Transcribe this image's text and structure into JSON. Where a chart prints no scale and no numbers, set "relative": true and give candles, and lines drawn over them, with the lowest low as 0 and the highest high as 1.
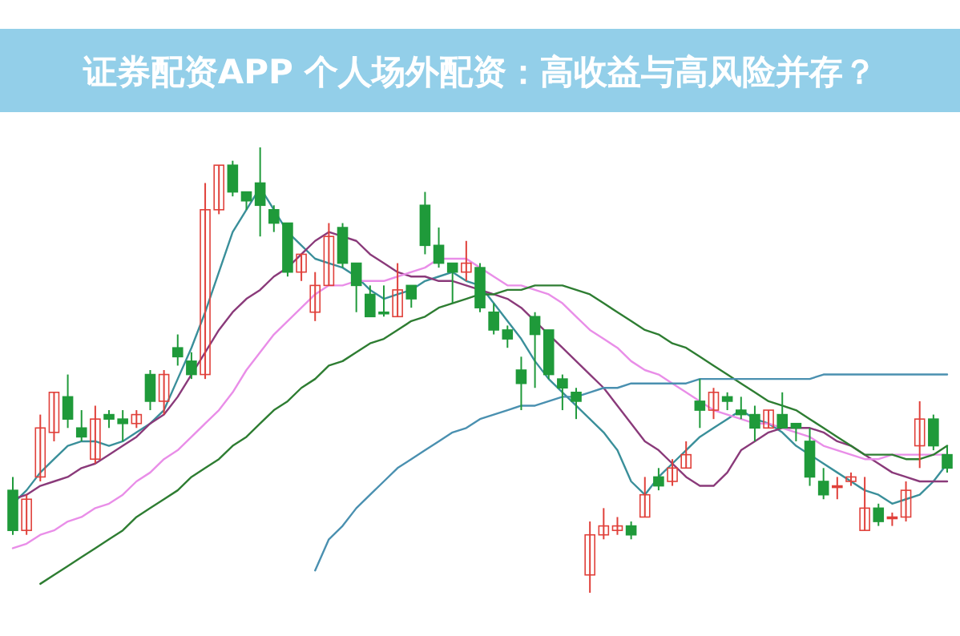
{
  "chart_data": {
    "type": "candlestick",
    "title": "证券配资APP 个人场外配资：高收益与高风险并存？",
    "relative": true,
    "categories": [
      null,
      null,
      null,
      null,
      null,
      null,
      null,
      null,
      null,
      null,
      null,
      null,
      null,
      null,
      null,
      null,
      null,
      null,
      null,
      null,
      null,
      null,
      null,
      null,
      null,
      null,
      null,
      null,
      null,
      null,
      null,
      null,
      null,
      null,
      null,
      null,
      null,
      null,
      null,
      null,
      null,
      null,
      null,
      null,
      null,
      null,
      null,
      null,
      null,
      null,
      null,
      null,
      null,
      null,
      null,
      null,
      null,
      null,
      null,
      null,
      null,
      null,
      null,
      null,
      null,
      null,
      null,
      null,
      null
    ],
    "ohlc": [
      [
        0.23,
        0.26,
        0.13,
        0.14
      ],
      [
        0.14,
        0.22,
        0.13,
        0.21
      ],
      [
        0.26,
        0.4,
        0.25,
        0.37
      ],
      [
        0.36,
        0.45,
        0.34,
        0.45
      ],
      [
        0.44,
        0.49,
        0.37,
        0.39
      ],
      [
        0.37,
        0.41,
        0.34,
        0.35
      ],
      [
        0.3,
        0.42,
        0.29,
        0.39
      ],
      [
        0.4,
        0.41,
        0.37,
        0.39
      ],
      [
        0.39,
        0.41,
        0.34,
        0.38
      ],
      [
        0.38,
        0.41,
        0.37,
        0.4
      ],
      [
        0.49,
        0.5,
        0.41,
        0.43
      ],
      [
        0.43,
        0.5,
        0.4,
        0.49
      ],
      [
        0.55,
        0.58,
        0.51,
        0.53
      ],
      [
        0.52,
        0.54,
        0.48,
        0.49
      ],
      [
        0.49,
        0.92,
        0.48,
        0.86
      ],
      [
        0.86,
        0.96,
        0.85,
        0.96
      ],
      [
        0.96,
        0.97,
        0.89,
        0.9
      ],
      [
        0.9,
        0.9,
        0.86,
        0.88
      ],
      [
        0.92,
        1,
        0.8,
        0.87
      ],
      [
        0.86,
        0.87,
        0.81,
        0.83
      ],
      [
        0.83,
        0.83,
        0.71,
        0.72
      ],
      [
        0.72,
        0.76,
        0.7,
        0.76
      ],
      [
        0.63,
        0.72,
        0.61,
        0.69
      ],
      [
        0.69,
        0.83,
        0.69,
        0.8
      ],
      [
        0.82,
        0.83,
        0.73,
        0.74
      ],
      [
        0.74,
        0.74,
        0.63,
        0.69
      ],
      [
        0.67,
        0.69,
        0.62,
        0.62
      ],
      [
        0.63,
        0.69,
        0.62,
        0.63
      ],
      [
        0.62,
        0.74,
        0.62,
        0.68
      ],
      [
        0.69,
        0.69,
        0.64,
        0.66
      ],
      [
        0.87,
        0.9,
        0.76,
        0.78
      ],
      [
        0.78,
        0.82,
        0.73,
        0.74
      ],
      [
        0.74,
        0.74,
        0.65,
        0.72
      ],
      [
        0.72,
        0.79,
        0.7,
        0.74
      ],
      [
        0.73,
        0.74,
        0.63,
        0.64
      ],
      [
        0.63,
        0.65,
        0.58,
        0.59
      ],
      [
        0.59,
        0.6,
        0.55,
        0.57
      ],
      [
        0.5,
        0.53,
        0.41,
        0.47
      ],
      [
        0.62,
        0.63,
        0.46,
        0.58
      ],
      [
        0.59,
        0.59,
        0.48,
        0.49
      ],
      [
        0.48,
        0.49,
        0.41,
        0.46
      ],
      [
        0.45,
        0.46,
        0.39,
        0.43
      ],
      [
        0.04,
        0.16,
        0,
        0.13
      ],
      [
        0.13,
        0.19,
        0.12,
        0.15
      ],
      [
        0.14,
        0.17,
        0.13,
        0.15
      ],
      [
        0.15,
        0.16,
        0.12,
        0.13
      ],
      [
        0.17,
        0.26,
        0.17,
        0.22
      ],
      [
        0.26,
        0.28,
        0.23,
        0.24
      ],
      [
        0.25,
        0.3,
        0.24,
        0.28
      ],
      [
        0.28,
        0.34,
        0.28,
        0.31
      ],
      [
        0.43,
        0.48,
        0.37,
        0.41
      ],
      [
        0.41,
        0.46,
        0.39,
        0.45
      ],
      [
        0.44,
        0.45,
        0.41,
        0.43
      ],
      [
        0.41,
        0.44,
        0.39,
        0.4
      ],
      [
        0.4,
        0.42,
        0.34,
        0.37
      ],
      [
        0.37,
        0.41,
        0.37,
        0.41
      ],
      [
        0.4,
        0.45,
        0.37,
        0.37
      ],
      [
        0.38,
        0.38,
        0.34,
        0.37
      ],
      [
        0.34,
        0.37,
        0.24,
        0.26
      ],
      [
        0.25,
        0.28,
        0.21,
        0.22
      ],
      [
        0.24,
        0.26,
        0.21,
        0.24
      ],
      [
        0.25,
        0.27,
        0.24,
        0.26
      ],
      [
        0.14,
        0.26,
        0.14,
        0.19
      ],
      [
        0.19,
        0.2,
        0.15,
        0.16
      ],
      [
        0.17,
        0.18,
        0.15,
        0.17
      ],
      [
        0.17,
        0.25,
        0.16,
        0.23
      ],
      [
        0.33,
        0.43,
        0.28,
        0.39
      ],
      [
        0.39,
        0.4,
        0.32,
        0.33
      ],
      [
        0.31,
        0.33,
        0.27,
        0.28
      ]
    ],
    "colors": [
      "#1f9a3a",
      "#e0403a",
      "#e0403a",
      "#e0403a",
      "#1f9a3a",
      "#1f9a3a",
      "#e0403a",
      "#1f9a3a",
      "#1f9a3a",
      "#e0403a",
      "#1f9a3a",
      "#e0403a",
      "#1f9a3a",
      "#1f9a3a",
      "#e0403a",
      "#e0403a",
      "#1f9a3a",
      "#1f9a3a",
      "#1f9a3a",
      "#1f9a3a",
      "#1f9a3a",
      "#e0403a",
      "#e0403a",
      "#e0403a",
      "#1f9a3a",
      "#1f9a3a",
      "#1f9a3a",
      "#1f9a3a",
      "#e0403a",
      "#1f9a3a",
      "#1f9a3a",
      "#1f9a3a",
      "#1f9a3a",
      "#e0403a",
      "#1f9a3a",
      "#1f9a3a",
      "#1f9a3a",
      "#1f9a3a",
      "#1f9a3a",
      "#1f9a3a",
      "#1f9a3a",
      "#1f9a3a",
      "#e0403a",
      "#e0403a",
      "#e0403a",
      "#1f9a3a",
      "#e0403a",
      "#1f9a3a",
      "#e0403a",
      "#e0403a",
      "#1f9a3a",
      "#e0403a",
      "#1f9a3a",
      "#1f9a3a",
      "#1f9a3a",
      "#e0403a",
      "#1f9a3a",
      "#1f9a3a",
      "#1f9a3a",
      "#1f9a3a",
      "#e0403a",
      "#e0403a",
      "#e0403a",
      "#1f9a3a",
      "#e0403a",
      "#e0403a",
      "#e0403a",
      "#1f9a3a",
      "#1f9a3a"
    ],
    "series": [
      {
        "type": "line",
        "color": "#3a8f9a",
        "values": [
          0.2,
          0.23,
          0.27,
          0.3,
          0.33,
          0.34,
          0.34,
          0.33,
          0.34,
          0.36,
          0.38,
          0.41,
          0.48,
          0.55,
          0.63,
          0.72,
          0.81,
          0.86,
          0.91,
          0.86,
          0.81,
          0.78,
          0.75,
          0.74,
          0.73,
          0.71,
          0.68,
          0.66,
          0.67,
          0.68,
          0.7,
          0.71,
          0.72,
          0.7,
          0.69,
          0.65,
          0.61,
          0.57,
          0.52,
          0.48,
          0.45,
          0.42,
          0.39,
          0.36,
          0.32,
          0.25,
          0.22,
          0.26,
          0.29,
          0.32,
          0.35,
          0.37,
          0.39,
          0.41,
          0.39,
          0.38,
          0.36,
          0.33,
          0.31,
          0.29,
          0.27,
          0.25,
          0.23,
          0.22,
          0.2,
          0.21,
          0.22,
          0.25,
          0.29
        ]
      },
      {
        "type": "line",
        "color": "#8a3a7a",
        "values": [
          0.21,
          0.22,
          0.24,
          0.25,
          0.26,
          0.28,
          0.29,
          0.31,
          0.33,
          0.35,
          0.38,
          0.4,
          0.44,
          0.49,
          0.54,
          0.59,
          0.63,
          0.66,
          0.68,
          0.71,
          0.73,
          0.76,
          0.79,
          0.81,
          0.8,
          0.79,
          0.76,
          0.74,
          0.72,
          0.71,
          0.71,
          0.7,
          0.7,
          0.69,
          0.68,
          0.67,
          0.66,
          0.64,
          0.61,
          0.58,
          0.55,
          0.52,
          0.49,
          0.46,
          0.42,
          0.38,
          0.34,
          0.32,
          0.29,
          0.26,
          0.24,
          0.24,
          0.27,
          0.32,
          0.34,
          0.36,
          0.37,
          0.37,
          0.37,
          0.36,
          0.34,
          0.33,
          0.31,
          0.29,
          0.27,
          0.26,
          0.25,
          0.25,
          0.25
        ]
      },
      {
        "type": "line",
        "color": "#e98ee8",
        "values": [
          0.1,
          0.11,
          0.13,
          0.14,
          0.16,
          0.17,
          0.19,
          0.2,
          0.22,
          0.25,
          0.27,
          0.3,
          0.32,
          0.35,
          0.38,
          0.41,
          0.45,
          0.5,
          0.54,
          0.58,
          0.61,
          0.64,
          0.67,
          0.69,
          0.69,
          0.7,
          0.7,
          0.7,
          0.71,
          0.72,
          0.73,
          0.75,
          0.75,
          0.75,
          0.73,
          0.71,
          0.69,
          0.69,
          0.68,
          0.67,
          0.65,
          0.62,
          0.59,
          0.57,
          0.55,
          0.52,
          0.5,
          0.49,
          0.47,
          0.45,
          0.43,
          0.41,
          0.4,
          0.39,
          0.38,
          0.38,
          0.37,
          0.36,
          0.35,
          0.33,
          0.32,
          0.31,
          0.3,
          0.3,
          0.31,
          0.31,
          0.31,
          0.31,
          0.31
        ]
      },
      {
        "type": "line",
        "color": "#2e7d32",
        "values": [
          null,
          null,
          0.02,
          0.04,
          0.06,
          0.08,
          0.1,
          0.12,
          0.14,
          0.17,
          0.19,
          0.21,
          0.23,
          0.26,
          0.28,
          0.3,
          0.33,
          0.35,
          0.38,
          0.41,
          0.43,
          0.46,
          0.48,
          0.51,
          0.52,
          0.54,
          0.56,
          0.57,
          0.59,
          0.61,
          0.62,
          0.64,
          0.65,
          0.66,
          0.67,
          0.67,
          0.68,
          0.68,
          0.69,
          0.69,
          0.69,
          0.68,
          0.67,
          0.65,
          0.63,
          0.61,
          0.59,
          0.58,
          0.56,
          0.55,
          0.53,
          0.51,
          0.49,
          0.47,
          0.45,
          0.43,
          0.42,
          0.41,
          0.39,
          0.37,
          0.35,
          0.33,
          0.31,
          0.31,
          0.31,
          0.3,
          0.3,
          0.31,
          0.33
        ]
      },
      {
        "type": "line",
        "color": "#4a90b0",
        "values": [
          null,
          null,
          null,
          null,
          null,
          null,
          null,
          null,
          null,
          null,
          null,
          null,
          null,
          null,
          null,
          null,
          null,
          null,
          null,
          null,
          null,
          null,
          0.05,
          0.12,
          0.15,
          0.19,
          0.22,
          0.25,
          0.28,
          0.3,
          0.32,
          0.34,
          0.36,
          0.37,
          0.39,
          0.4,
          0.41,
          0.42,
          0.42,
          0.43,
          0.44,
          0.44,
          0.45,
          0.46,
          0.46,
          0.47,
          0.47,
          0.47,
          0.47,
          0.47,
          0.48,
          0.48,
          0.48,
          0.48,
          0.48,
          0.48,
          0.48,
          0.48,
          0.48,
          0.49,
          0.49,
          0.49,
          0.49,
          0.49,
          0.49,
          0.49,
          0.49,
          0.49,
          0.49
        ]
      }
    ]
  }
}
